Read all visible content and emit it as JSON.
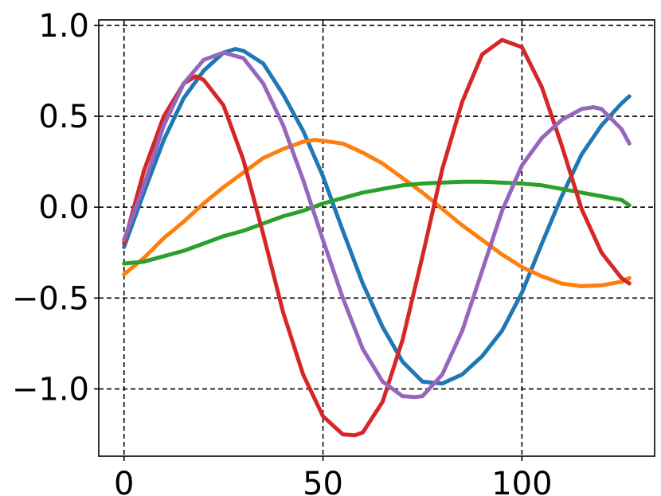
{
  "chart_data": {
    "type": "line",
    "title": "",
    "xlabel": "",
    "ylabel": "",
    "xlim": [
      -6.35,
      133.35
    ],
    "ylim": [
      -1.37,
      1.03
    ],
    "grid": true,
    "legend": "none",
    "x_ticks": [
      {
        "value": 0,
        "label": "0"
      },
      {
        "value": 50,
        "label": "50"
      },
      {
        "value": 100,
        "label": "100"
      }
    ],
    "y_ticks": [
      {
        "value": 1.0,
        "label": "1.0"
      },
      {
        "value": 0.5,
        "label": "0.5"
      },
      {
        "value": 0.0,
        "label": "0.0"
      },
      {
        "value": -0.5,
        "label": "−0.5"
      },
      {
        "value": -1.0,
        "label": "−1.0"
      }
    ],
    "series": [
      {
        "color": "#1f77b4",
        "x": [
          0,
          5,
          10,
          15,
          20,
          25,
          28,
          30,
          35,
          40,
          45,
          50,
          55,
          60,
          65,
          70,
          75,
          80,
          85,
          90,
          95,
          100,
          105,
          110,
          115,
          120,
          125,
          127
        ],
        "y": [
          -0.22,
          0.08,
          0.37,
          0.6,
          0.75,
          0.85,
          0.87,
          0.86,
          0.79,
          0.62,
          0.42,
          0.17,
          -0.13,
          -0.42,
          -0.66,
          -0.85,
          -0.96,
          -0.97,
          -0.92,
          -0.82,
          -0.68,
          -0.47,
          -0.2,
          0.06,
          0.29,
          0.45,
          0.57,
          0.61
        ]
      },
      {
        "color": "#ff7f0e",
        "x": [
          0,
          5,
          10,
          15,
          20,
          25,
          30,
          35,
          40,
          45,
          48,
          50,
          55,
          60,
          65,
          70,
          75,
          80,
          85,
          90,
          95,
          100,
          105,
          110,
          115,
          120,
          125,
          127
        ],
        "y": [
          -0.37,
          -0.28,
          -0.17,
          -0.08,
          0.02,
          0.11,
          0.19,
          0.27,
          0.32,
          0.36,
          0.37,
          0.365,
          0.35,
          0.3,
          0.24,
          0.16,
          0.08,
          -0.01,
          -0.1,
          -0.18,
          -0.26,
          -0.33,
          -0.38,
          -0.42,
          -0.435,
          -0.43,
          -0.41,
          -0.39
        ]
      },
      {
        "color": "#2ca02c",
        "x": [
          0,
          5,
          10,
          15,
          20,
          25,
          30,
          35,
          40,
          45,
          50,
          55,
          60,
          65,
          70,
          75,
          80,
          85,
          90,
          95,
          100,
          105,
          110,
          115,
          120,
          125,
          127
        ],
        "y": [
          -0.31,
          -0.3,
          -0.27,
          -0.24,
          -0.2,
          -0.16,
          -0.13,
          -0.09,
          -0.05,
          -0.02,
          0.02,
          0.05,
          0.08,
          0.1,
          0.12,
          0.13,
          0.135,
          0.14,
          0.14,
          0.135,
          0.13,
          0.12,
          0.1,
          0.08,
          0.06,
          0.04,
          0.01
        ]
      },
      {
        "color": "#d62728",
        "x": [
          0,
          5,
          10,
          15,
          18,
          20,
          25,
          30,
          35,
          40,
          45,
          50,
          55,
          58,
          60,
          65,
          70,
          75,
          80,
          85,
          90,
          95,
          100,
          105,
          110,
          115,
          120,
          125,
          127
        ],
        "y": [
          -0.2,
          0.2,
          0.5,
          0.68,
          0.72,
          0.7,
          0.56,
          0.26,
          -0.15,
          -0.58,
          -0.92,
          -1.15,
          -1.25,
          -1.255,
          -1.24,
          -1.07,
          -0.73,
          -0.27,
          0.21,
          0.58,
          0.84,
          0.92,
          0.88,
          0.66,
          0.34,
          -0.01,
          -0.25,
          -0.39,
          -0.42
        ]
      },
      {
        "color": "#9467bd",
        "x": [
          0,
          5,
          10,
          15,
          20,
          25,
          30,
          35,
          40,
          45,
          50,
          55,
          60,
          65,
          70,
          73,
          75,
          80,
          85,
          90,
          95,
          100,
          105,
          110,
          115,
          118,
          120,
          125,
          127
        ],
        "y": [
          -0.18,
          0.12,
          0.45,
          0.68,
          0.81,
          0.85,
          0.82,
          0.68,
          0.45,
          0.15,
          -0.18,
          -0.5,
          -0.78,
          -0.96,
          -1.04,
          -1.045,
          -1.04,
          -0.92,
          -0.68,
          -0.35,
          -0.02,
          0.23,
          0.38,
          0.48,
          0.54,
          0.55,
          0.54,
          0.43,
          0.35
        ]
      }
    ]
  }
}
